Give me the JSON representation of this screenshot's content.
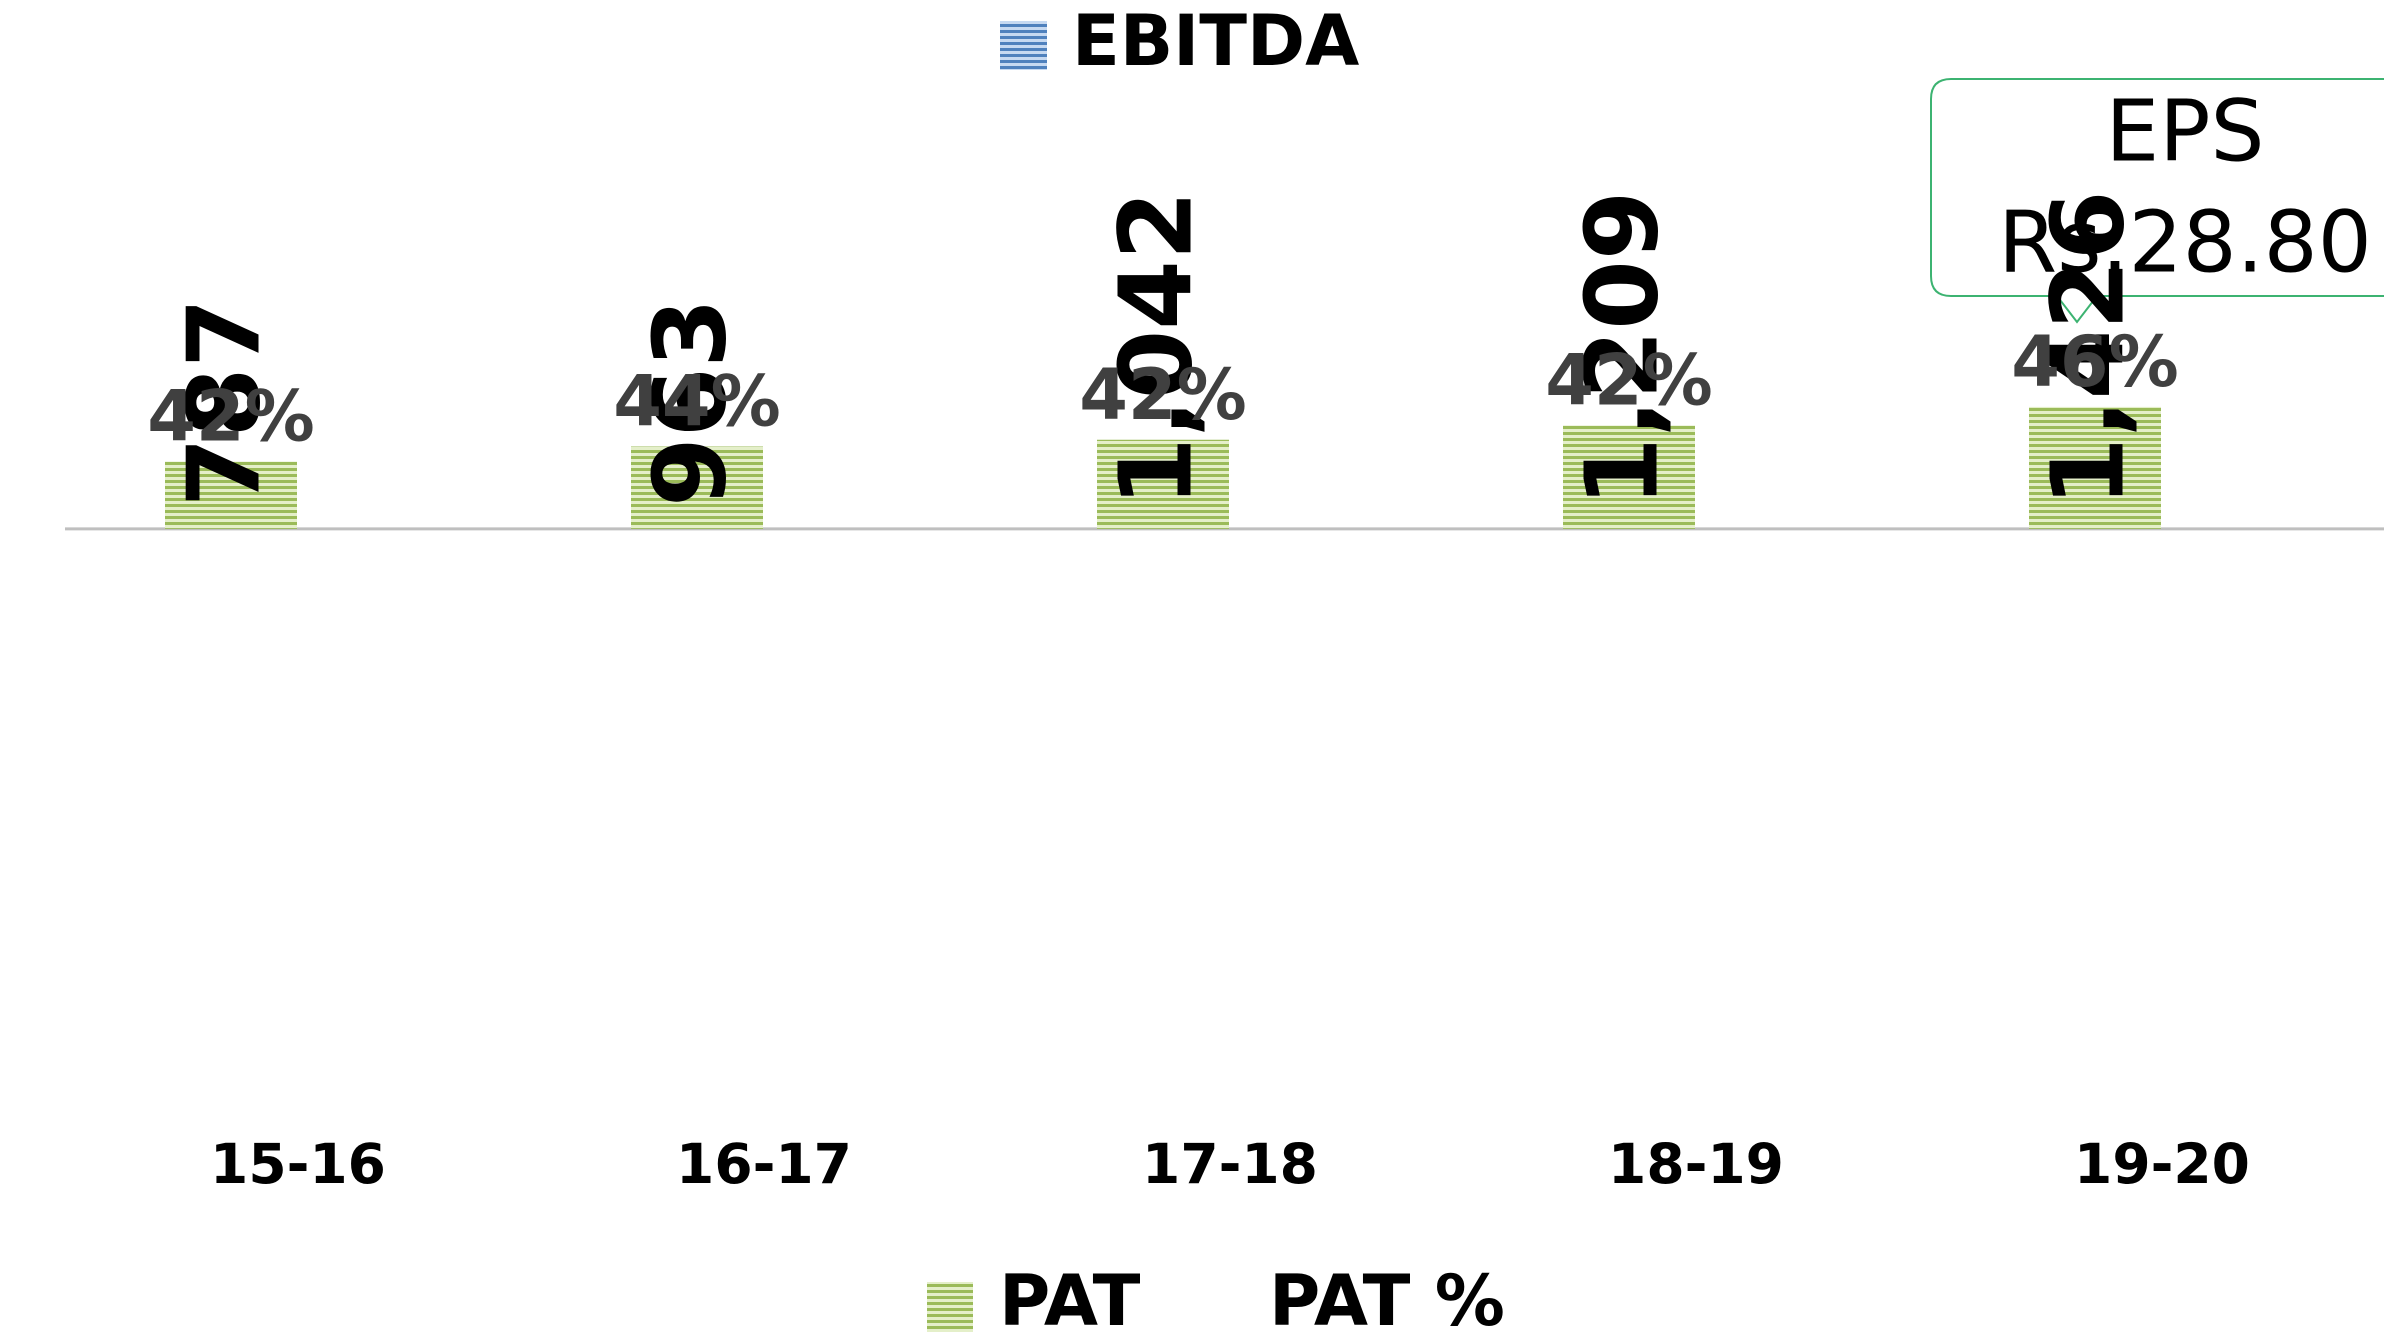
{
  "chart_data": {
    "type": "bar",
    "top_legend": {
      "name": "EBITDA",
      "color": "#4f81bd"
    },
    "categories": [
      "15-16",
      "16-17",
      "17-18",
      "18-19",
      "19-20"
    ],
    "series": [
      {
        "name": "PAT",
        "color": "#9bbb59",
        "values": [
          787,
          963,
          1042,
          1209,
          1426
        ],
        "value_labels": [
          "787",
          "963",
          "1,042",
          "1,209",
          "1,426"
        ]
      },
      {
        "name": "PAT %",
        "values": [
          42,
          44,
          42,
          42,
          46
        ],
        "value_labels": [
          "42%",
          "44%",
          "42%",
          "42%",
          "46%"
        ]
      }
    ],
    "ylim": [
      -6500,
      1600
    ],
    "annotation": {
      "lines": [
        "EPS",
        "Rs.28.80"
      ]
    }
  }
}
